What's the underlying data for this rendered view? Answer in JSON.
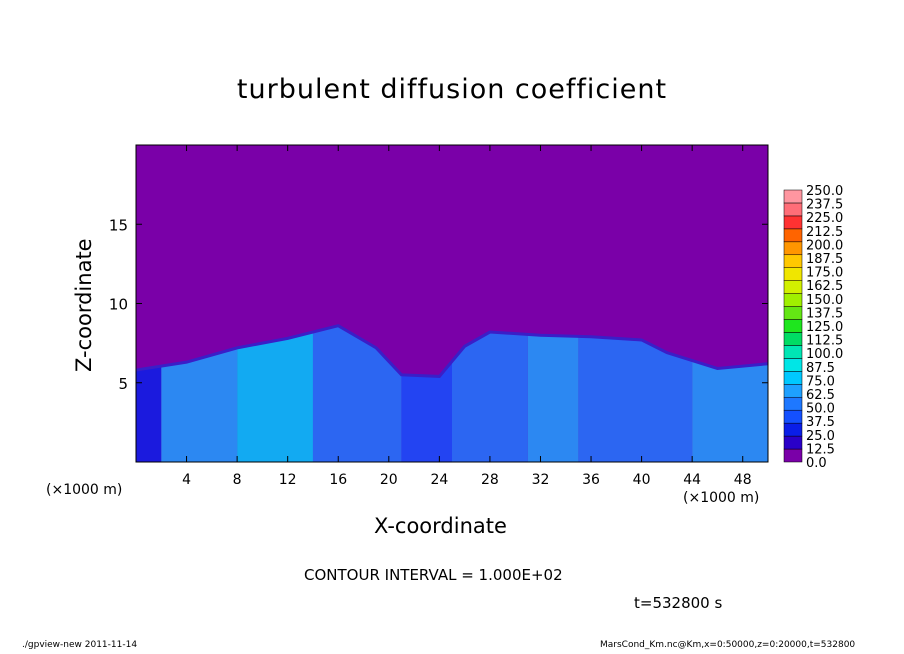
{
  "chart_data": {
    "type": "heatmap",
    "title": "turbulent diffusion coefficient",
    "xlabel": "X-coordinate",
    "ylabel": "Z-coordinate",
    "x_unit": "(×1000 m)",
    "x_ticks": [
      "4",
      "8",
      "12",
      "16",
      "20",
      "24",
      "28",
      "32",
      "36",
      "40",
      "44",
      "48"
    ],
    "y_ticks": [
      "5",
      "10",
      "15"
    ],
    "xlim": [
      0,
      50
    ],
    "ylim": [
      0,
      20
    ],
    "colorbar_levels": [
      "0.0",
      "12.5",
      "25.0",
      "37.5",
      "50.0",
      "62.5",
      "75.0",
      "87.5",
      "100.0",
      "112.5",
      "125.0",
      "137.5",
      "150.0",
      "162.5",
      "175.0",
      "187.5",
      "200.0",
      "212.5",
      "225.0",
      "237.5",
      "250.0"
    ],
    "colorbar_colors": [
      "#7a00a8",
      "#2a00c8",
      "#0a1ee8",
      "#1450ff",
      "#1e78ff",
      "#1ea0ff",
      "#00c8ff",
      "#00e6e6",
      "#00e6b4",
      "#00dc64",
      "#1ee61e",
      "#64e614",
      "#a0f000",
      "#d2f000",
      "#f0e600",
      "#ffc800",
      "#ff9600",
      "#ff6400",
      "#ff3232",
      "#ff6e78",
      "#ff96a0"
    ],
    "background_value_color": "#7a00a8",
    "cells": [
      {
        "x0": 0,
        "x1": 2,
        "level": 2
      },
      {
        "x0": 2,
        "x1": 8,
        "level": 5
      },
      {
        "x0": 8,
        "x1": 14,
        "level": 6
      },
      {
        "x0": 14,
        "x1": 21,
        "level": 4
      },
      {
        "x0": 21,
        "x1": 25,
        "level": 3
      },
      {
        "x0": 25,
        "x1": 31,
        "level": 4
      },
      {
        "x0": 31,
        "x1": 35,
        "level": 5
      },
      {
        "x0": 35,
        "x1": 44,
        "level": 4
      },
      {
        "x0": 44,
        "x1": 50,
        "level": 5
      }
    ],
    "boundary_layer_top": [
      [
        0,
        5.8
      ],
      [
        4,
        6.3
      ],
      [
        8,
        7.2
      ],
      [
        12,
        7.8
      ],
      [
        16,
        8.6
      ],
      [
        19,
        7.2
      ],
      [
        21,
        5.5
      ],
      [
        24,
        5.4
      ],
      [
        26,
        7.3
      ],
      [
        28,
        8.2
      ],
      [
        32,
        8.0
      ],
      [
        36,
        7.9
      ],
      [
        40,
        7.7
      ],
      [
        42,
        6.9
      ],
      [
        46,
        5.9
      ],
      [
        50,
        6.2
      ]
    ],
    "contour_interval": "CONTOUR INTERVAL = 1.000E+02",
    "time": "t=532800 s"
  },
  "footer": {
    "left": "./gpview-new   2011-11-14",
    "right": "MarsCond_Km.nc@Km,x=0:50000,z=0:20000,t=532800"
  }
}
